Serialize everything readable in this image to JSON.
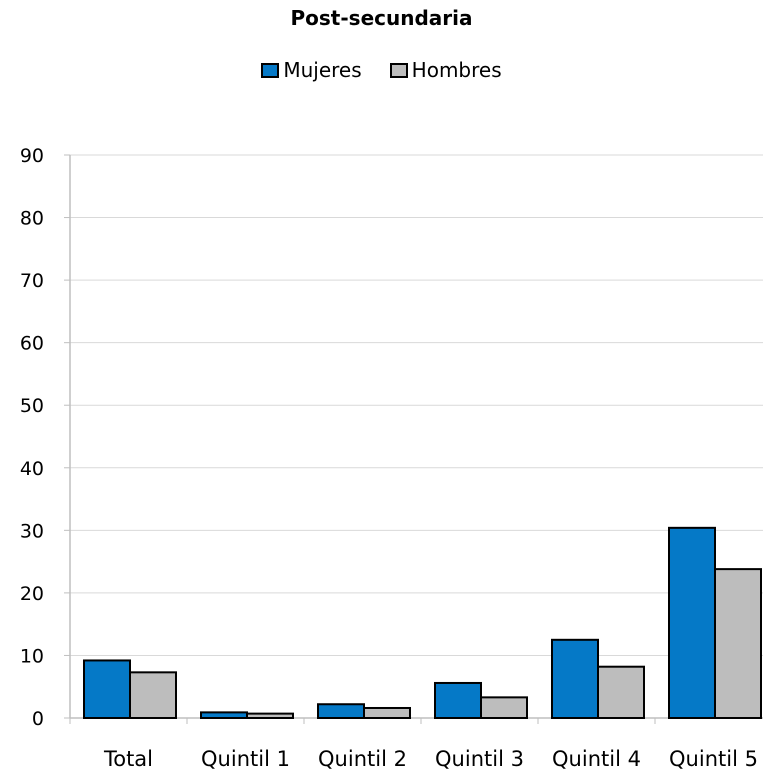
{
  "chart_data": {
    "type": "bar",
    "title": "Post-secundaria",
    "categories": [
      "Total",
      "Quintil 1",
      "Quintil 2",
      "Quintil 3",
      "Quintil 4",
      "Quintil 5"
    ],
    "series": [
      {
        "name": "Mujeres",
        "color": "#0579c7",
        "values": [
          9.2,
          0.9,
          2.2,
          5.6,
          12.5,
          30.4
        ]
      },
      {
        "name": "Hombres",
        "color": "#bdbdbd",
        "values": [
          7.3,
          0.7,
          1.6,
          3.3,
          8.2,
          23.8
        ]
      }
    ],
    "ylim": [
      0,
      90
    ],
    "yticks": [
      0,
      10,
      20,
      30,
      40,
      50,
      60,
      70,
      80,
      90
    ],
    "grid": true,
    "legend_position": "top-center",
    "xlabel": "",
    "ylabel": ""
  }
}
